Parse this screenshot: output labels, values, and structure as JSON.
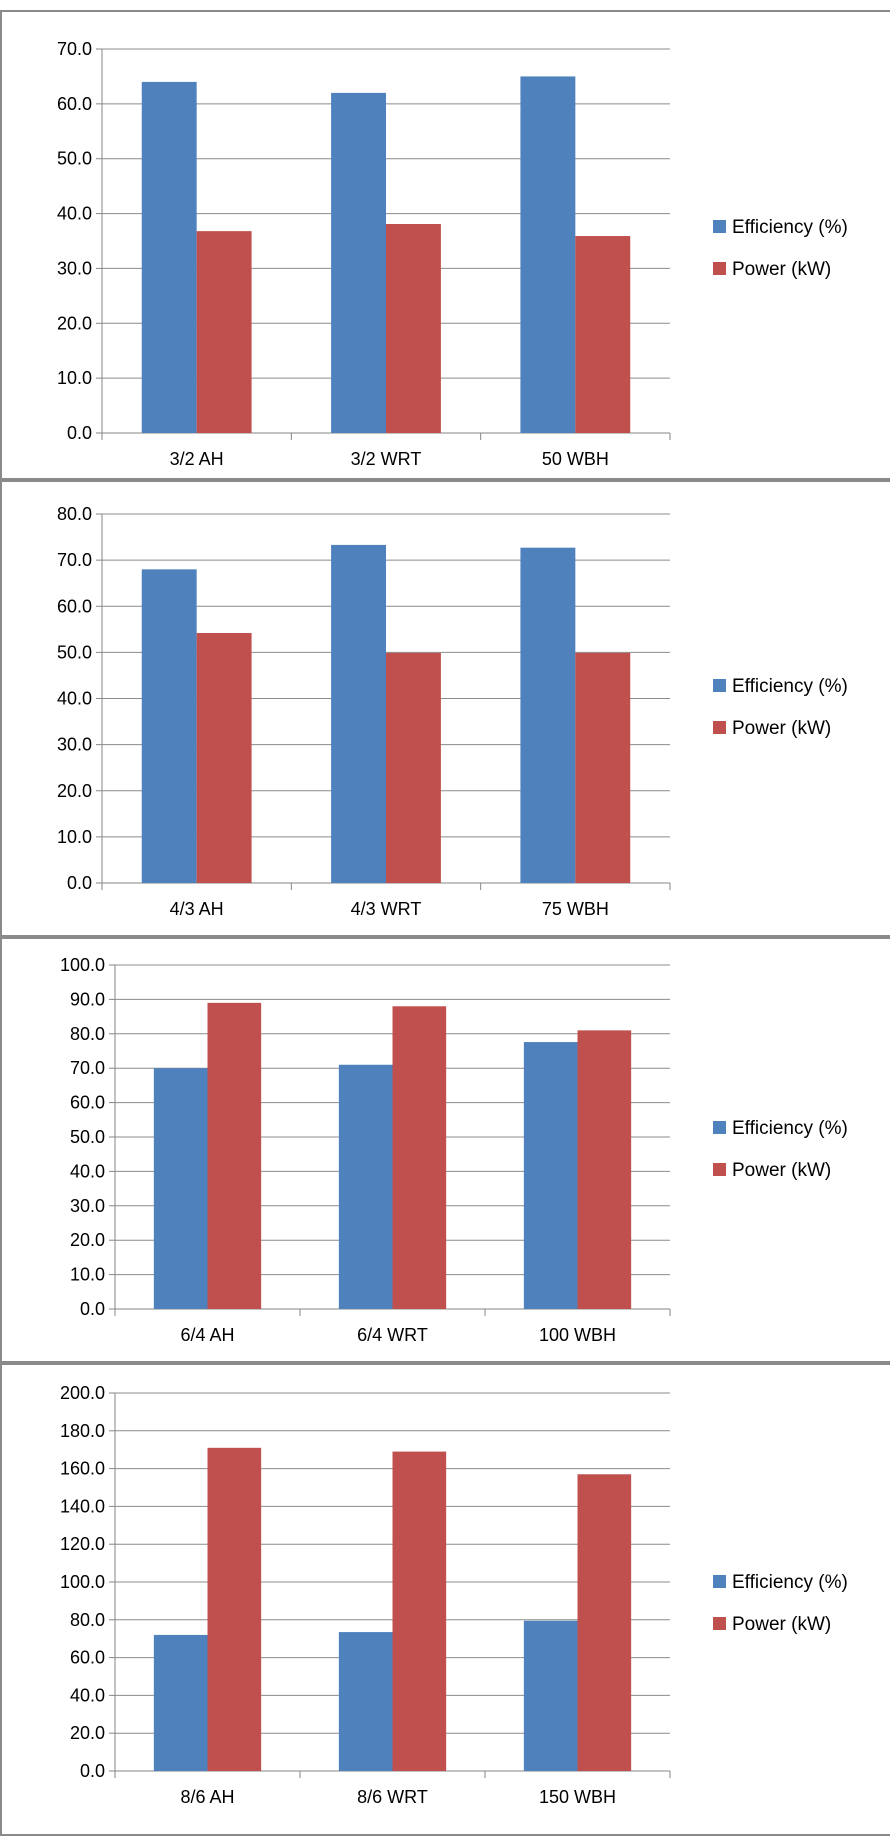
{
  "colors": {
    "efficiency": "#4f81bd",
    "power": "#c0504d",
    "grid": "#8c8c8c",
    "axis": "#868686"
  },
  "chart_data": [
    {
      "type": "bar",
      "categories": [
        "3/2 AH",
        "3/2 WRT",
        "50 WBH"
      ],
      "series": [
        {
          "name": "Efficiency (%)",
          "values": [
            64.0,
            62.0,
            65.0
          ]
        },
        {
          "name": "Power (kW)",
          "values": [
            36.8,
            38.1,
            35.9
          ]
        }
      ],
      "ylim": [
        0,
        70
      ],
      "ystep": 10,
      "yticks": [
        "0.0",
        "10.0",
        "20.0",
        "30.0",
        "40.0",
        "50.0",
        "60.0",
        "70.0"
      ],
      "grid": true,
      "legend": "right"
    },
    {
      "type": "bar",
      "categories": [
        "4/3 AH",
        "4/3 WRT",
        "75 WBH"
      ],
      "series": [
        {
          "name": "Efficiency (%)",
          "values": [
            68.0,
            73.3,
            72.7
          ]
        },
        {
          "name": "Power (kW)",
          "values": [
            54.2,
            49.9,
            49.9
          ]
        }
      ],
      "ylim": [
        0,
        80
      ],
      "ystep": 10,
      "yticks": [
        "0.0",
        "10.0",
        "20.0",
        "30.0",
        "40.0",
        "50.0",
        "60.0",
        "70.0",
        "80.0"
      ],
      "grid": true,
      "legend": "right"
    },
    {
      "type": "bar",
      "categories": [
        "6/4 AH",
        "6/4 WRT",
        "100 WBH"
      ],
      "series": [
        {
          "name": "Efficiency (%)",
          "values": [
            70.0,
            71.0,
            77.6
          ]
        },
        {
          "name": "Power (kW)",
          "values": [
            89.0,
            88.0,
            81.0
          ]
        }
      ],
      "ylim": [
        0,
        100
      ],
      "ystep": 10,
      "yticks": [
        "0.0",
        "10.0",
        "20.0",
        "30.0",
        "40.0",
        "50.0",
        "60.0",
        "70.0",
        "80.0",
        "90.0",
        "100.0"
      ],
      "grid": true,
      "legend": "right"
    },
    {
      "type": "bar",
      "categories": [
        "8/6 AH",
        "8/6 WRT",
        "150 WBH"
      ],
      "series": [
        {
          "name": "Efficiency (%)",
          "values": [
            72.0,
            73.5,
            79.5
          ]
        },
        {
          "name": "Power (kW)",
          "values": [
            171.0,
            169.0,
            157.0
          ]
        }
      ],
      "ylim": [
        0,
        200
      ],
      "ystep": 20,
      "yticks": [
        "0.0",
        "20.0",
        "40.0",
        "60.0",
        "80.0",
        "100.0",
        "120.0",
        "140.0",
        "160.0",
        "180.0",
        "200.0"
      ],
      "grid": true,
      "legend": "right"
    }
  ]
}
